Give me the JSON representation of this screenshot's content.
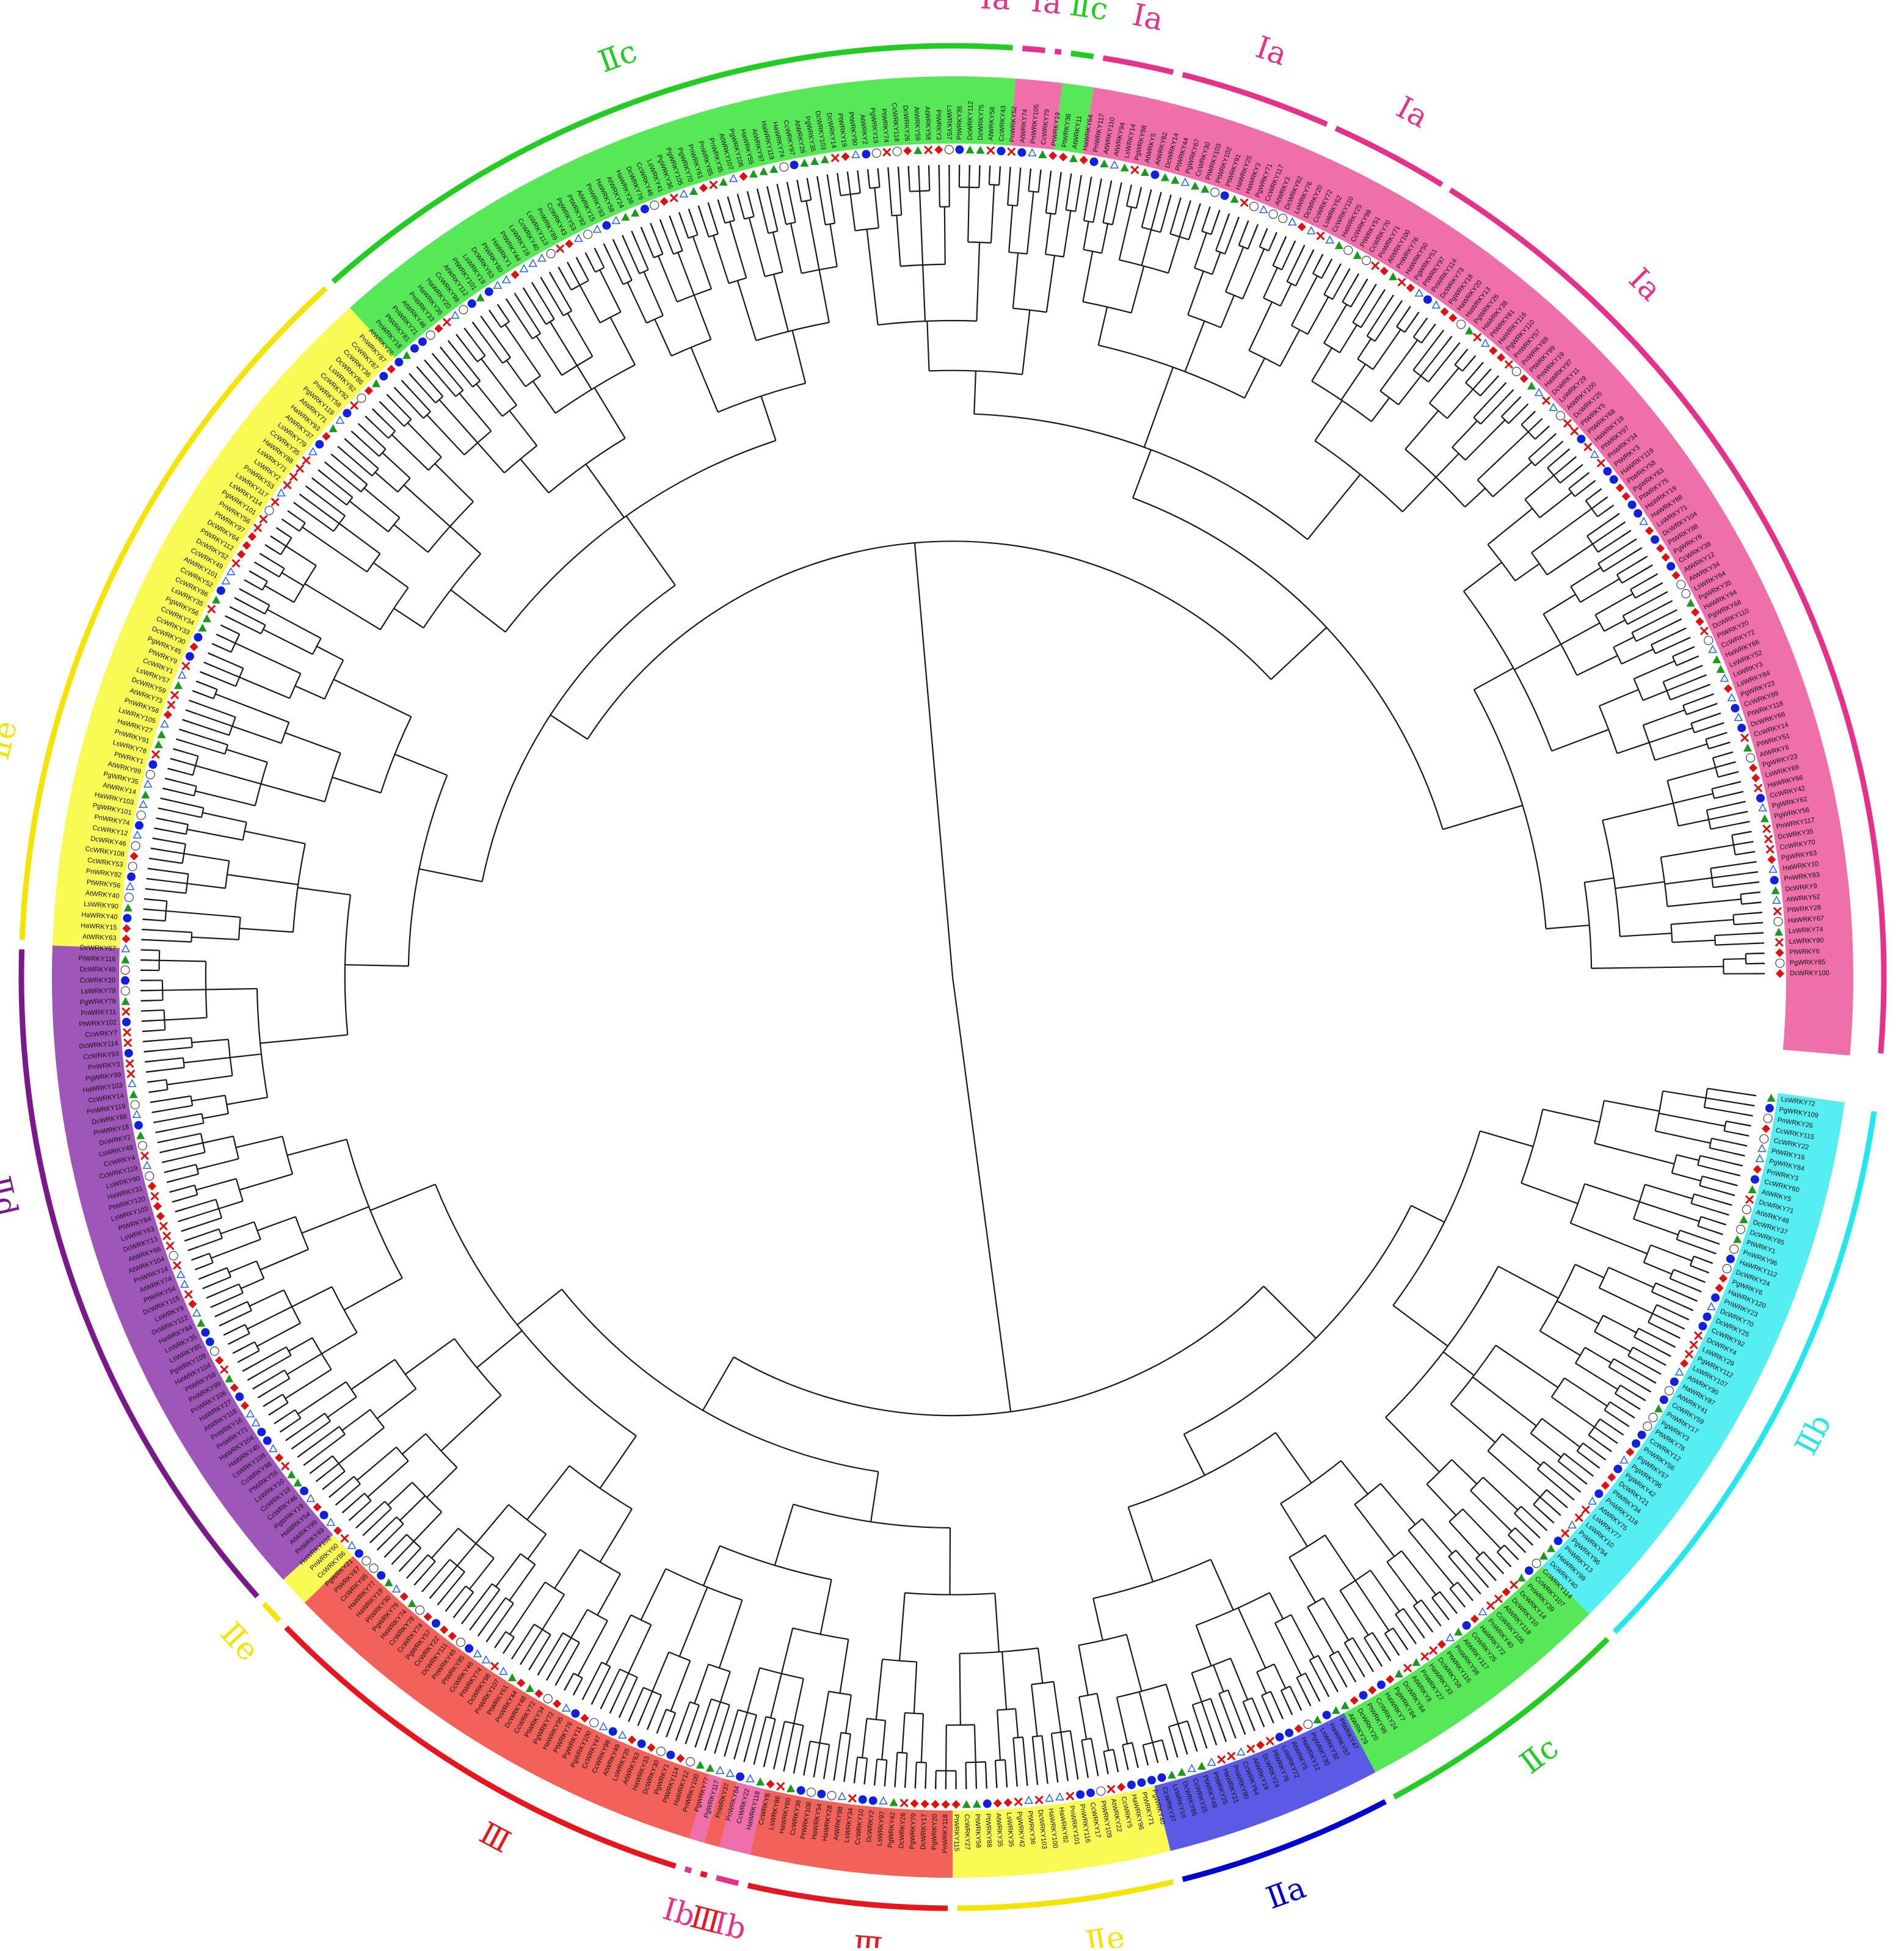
{
  "figure": {
    "background": "#ffffff",
    "branch_color": "#1a1a1a"
  },
  "clades": [
    {
      "label": "Ⅰa",
      "group": "Ia",
      "color": "#e6318a",
      "fill": "#ef6fab",
      "start_deg": -58,
      "end_deg": 5
    },
    {
      "label": "Ⅰa",
      "group": "Ia",
      "color": "#e6318a",
      "fill": "#ef6fab",
      "start_deg": -66,
      "end_deg": -58
    },
    {
      "label": "Ⅰa",
      "group": "Ia",
      "color": "#e6318a",
      "fill": "#ef6fab",
      "start_deg": -76,
      "end_deg": -66
    },
    {
      "label": "Ⅰa",
      "group": "Ia",
      "color": "#e6318a",
      "fill": "#ef6fab",
      "start_deg": -81,
      "end_deg": -76
    },
    {
      "label": "Ⅱc",
      "group": "IIc",
      "color": "#22cc22",
      "fill": "#57e857",
      "start_deg": -83,
      "end_deg": -81
    },
    {
      "label": "Ⅰa",
      "group": "Ia",
      "color": "#e6318a",
      "fill": "#ef6fab",
      "start_deg": -84,
      "end_deg": -83
    },
    {
      "label": "Ⅰa",
      "group": "Ia",
      "color": "#e6318a",
      "fill": "#ef6fab",
      "start_deg": -86,
      "end_deg": -84
    },
    {
      "label": "Ⅱc",
      "group": "IIc",
      "color": "#22cc22",
      "fill": "#57e857",
      "start_deg": -132,
      "end_deg": -86
    },
    {
      "label": "Ⅱe",
      "group": "IIe",
      "color": "#f5e400",
      "fill": "#fafa55",
      "start_deg": -178,
      "end_deg": -132
    },
    {
      "label": "Ⅱd",
      "group": "IId",
      "color": "#7a1a8a",
      "fill": "#9e56b8",
      "start_deg": 138,
      "end_deg": 182
    },
    {
      "label": "Ⅱe",
      "group": "IIe",
      "color": "#f5e400",
      "fill": "#fafa55",
      "start_deg": 136,
      "end_deg": 138
    },
    {
      "label": "Ⅲ",
      "group": "III",
      "color": "#e8141e",
      "fill": "#f2625a",
      "start_deg": 107,
      "end_deg": 136
    },
    {
      "label": "Ⅰb",
      "group": "Ib",
      "color": "#e6318a",
      "fill": "#ef6fab",
      "start_deg": 106,
      "end_deg": 107
    },
    {
      "label": "Ⅲ",
      "group": "III",
      "color": "#e8141e",
      "fill": "#f2625a",
      "start_deg": 105,
      "end_deg": 106
    },
    {
      "label": "Ⅰb",
      "group": "Ib",
      "color": "#e6318a",
      "fill": "#ef6fab",
      "start_deg": 103,
      "end_deg": 105
    },
    {
      "label": "Ⅲ",
      "group": "III",
      "color": "#e8141e",
      "fill": "#f2625a",
      "start_deg": 90,
      "end_deg": 103
    },
    {
      "label": "Ⅱe",
      "group": "IIe",
      "color": "#f5e400",
      "fill": "#fafa55",
      "start_deg": 76,
      "end_deg": 90
    },
    {
      "label": "Ⅱa",
      "group": "IIa",
      "color": "#0000d0",
      "fill": "#5a5ae6",
      "start_deg": 62,
      "end_deg": 76
    },
    {
      "label": "Ⅱc",
      "group": "IIc",
      "color": "#22cc22",
      "fill": "#57e857",
      "start_deg": 45,
      "end_deg": 62
    },
    {
      "label": "Ⅱb",
      "group": "IIb",
      "color": "#22e8ee",
      "fill": "#55eef2",
      "start_deg": 8,
      "end_deg": 45
    }
  ],
  "clade_label_positions": [
    {
      "label": "Ⅰa",
      "deg": -45
    },
    {
      "label": "Ⅰa",
      "deg": 1
    },
    {
      "label": "Ⅰa",
      "deg": -62
    },
    {
      "label": "Ⅰa",
      "deg": -71
    },
    {
      "label": "Ⅰa",
      "deg": -78.5
    },
    {
      "label": "Ⅰa",
      "deg": -84.5
    },
    {
      "label": "Ⅰa",
      "deg": -87.5
    },
    {
      "label": "Ⅱc",
      "deg": -82
    },
    {
      "label": "Ⅱc",
      "deg": -110
    },
    {
      "label": "Ⅱe",
      "deg": -166
    },
    {
      "label": "Ⅱd",
      "deg": 167
    },
    {
      "label": "Ⅱe",
      "deg": 137
    },
    {
      "label": "Ⅲ",
      "deg": 118
    },
    {
      "label": "Ⅰb",
      "deg": 106.3
    },
    {
      "label": "Ⅲ",
      "deg": 104.7
    },
    {
      "label": "Ⅰb",
      "deg": 103.2
    },
    {
      "label": "Ⅲ",
      "deg": 95
    },
    {
      "label": "Ⅱe",
      "deg": 81
    },
    {
      "label": "Ⅱa",
      "deg": 70
    },
    {
      "label": "Ⅱc",
      "deg": 53
    },
    {
      "label": "Ⅱb",
      "deg": 28
    }
  ],
  "species_prefixes": [
    "At",
    "Pt",
    "Pg",
    "Dc",
    "Ls",
    "Ha",
    "Cc",
    "Pn"
  ],
  "marker_colors": {
    "red": "#e01010",
    "blue": "#1020e0",
    "green": "#1a9a1a",
    "white": "#ffffff",
    "star": "#2060ff"
  }
}
